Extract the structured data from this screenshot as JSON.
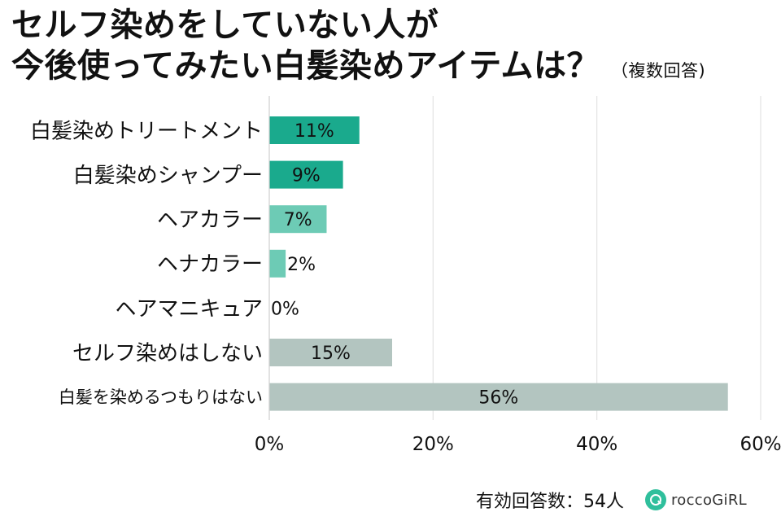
{
  "header": {
    "title_line1": "セルフ染めをしていない人が",
    "title_line2": "今後使ってみたい白髪染めアイテムは？",
    "note": "（複数回答)"
  },
  "chart_data": {
    "type": "bar",
    "orientation": "horizontal",
    "categories": [
      "白髪染めトリートメント",
      "白髪染めシャンプー",
      "ヘアカラー",
      "ヘナカラー",
      "ヘアマニキュア",
      "セルフ染めはしない",
      "白髪を染めるつもりはない"
    ],
    "values": [
      11,
      9,
      7,
      2,
      0,
      15,
      56
    ],
    "data_labels": [
      "11%",
      "9%",
      "7%",
      "2%",
      "0%",
      "15%",
      "56%"
    ],
    "colors": [
      "#1aaa8d",
      "#1aaa8d",
      "#6dcbb5",
      "#6dcbb5",
      "#6dcbb5",
      "#b3c5c0",
      "#b3c5c0"
    ],
    "xlim": [
      0,
      60
    ],
    "xticks": [
      0,
      20,
      40,
      60
    ],
    "xtick_labels": [
      "0%",
      "20%",
      "40%",
      "60%"
    ],
    "grid": true
  },
  "footer": {
    "respondents": "有効回答数：54人",
    "brand": "roccoGiRL"
  }
}
